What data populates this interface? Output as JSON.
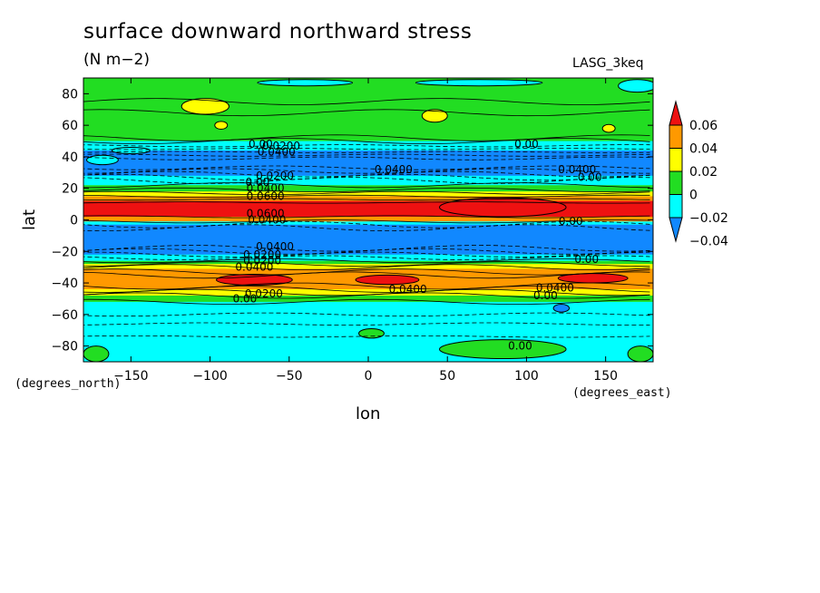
{
  "chart_data": {
    "type": "contour",
    "title": "surface downward northward stress",
    "units": "(N m−2)",
    "model": "LASG_3keq",
    "xlabel": "lon",
    "ylabel": "lat",
    "x_units": "(degrees_east)",
    "y_units": "(degrees_north)",
    "xlim": [
      -180,
      180
    ],
    "ylim": [
      -90,
      90
    ],
    "xticks": [
      -150,
      -100,
      -50,
      0,
      50,
      100,
      150
    ],
    "yticks": [
      -80,
      -60,
      -40,
      -20,
      0,
      20,
      40,
      60,
      80
    ],
    "x_tick_labels": [
      "−150",
      "−100",
      "−50",
      "0",
      "50",
      "100",
      "150"
    ],
    "y_tick_labels": [
      "−80",
      "−60",
      "−40",
      "−20",
      "0",
      "20",
      "40",
      "60",
      "80"
    ],
    "colorbar": {
      "levels": [
        "0.06",
        "0.04",
        "0.02",
        "0",
        "−0.02",
        "−0.04"
      ],
      "colors": [
        "#ee1111",
        "#ff9900",
        "#ffff00",
        "#22dd22",
        "#00ffff",
        "#1188ff"
      ]
    },
    "bands": [
      {
        "lat": [
          72,
          90
        ],
        "color": "#22dd22"
      },
      {
        "lat": [
          50,
          72
        ],
        "color": "#22dd22"
      },
      {
        "lat": [
          44,
          50
        ],
        "color": "#00ffff"
      },
      {
        "lat": [
          28,
          44
        ],
        "color": "#1188ff"
      },
      {
        "lat": [
          22,
          28
        ],
        "color": "#00ffff"
      },
      {
        "lat": [
          18,
          22
        ],
        "color": "#22dd22"
      },
      {
        "lat": [
          15,
          18
        ],
        "color": "#ffff00"
      },
      {
        "lat": [
          12,
          15
        ],
        "color": "#ff9900"
      },
      {
        "lat": [
          2,
          12
        ],
        "color": "#ee1111"
      },
      {
        "lat": [
          -1,
          2
        ],
        "color": "#ff9900"
      },
      {
        "lat": [
          -3,
          -1
        ],
        "color": "#00ffff"
      },
      {
        "lat": [
          -22,
          -3
        ],
        "color": "#1188ff"
      },
      {
        "lat": [
          -26,
          -22
        ],
        "color": "#00ffff"
      },
      {
        "lat": [
          -28,
          -26
        ],
        "color": "#22dd22"
      },
      {
        "lat": [
          -31,
          -28
        ],
        "color": "#ffff00"
      },
      {
        "lat": [
          -44,
          -31
        ],
        "color": "#ff9900"
      },
      {
        "lat": [
          -48,
          -44
        ],
        "color": "#ffff00"
      },
      {
        "lat": [
          -52,
          -48
        ],
        "color": "#22dd22"
      },
      {
        "lat": [
          -90,
          -52
        ],
        "color": "#00ffff"
      }
    ],
    "patches": [
      {
        "lon": -168,
        "lat": 38,
        "rlon": 10,
        "rlat": 3,
        "color": "#00ffff"
      },
      {
        "lon": -150,
        "lat": 44,
        "rlon": 12,
        "rlat": 2,
        "color": "#00ffff"
      },
      {
        "lon": 85,
        "lat": 8,
        "rlon": 40,
        "rlat": 6,
        "color": "#ee1111"
      },
      {
        "lon": -72,
        "lat": -38,
        "rlon": 24,
        "rlat": 3.5,
        "color": "#ee1111"
      },
      {
        "lon": 12,
        "lat": -38,
        "rlon": 20,
        "rlat": 3,
        "color": "#ee1111"
      },
      {
        "lon": 142,
        "lat": -37,
        "rlon": 22,
        "rlat": 3,
        "color": "#ee1111"
      },
      {
        "lon": -103,
        "lat": 72,
        "rlon": 15,
        "rlat": 5,
        "color": "#ffff00"
      },
      {
        "lon": 42,
        "lat": 66,
        "rlon": 8,
        "rlat": 4,
        "color": "#ffff00"
      },
      {
        "lon": -93,
        "lat": 60,
        "rlon": 4,
        "rlat": 2.5,
        "color": "#ffff00"
      },
      {
        "lon": 152,
        "lat": 58,
        "rlon": 4,
        "rlat": 2.5,
        "color": "#ffff00"
      },
      {
        "lon": -40,
        "lat": 87,
        "rlon": 30,
        "rlat": 2,
        "color": "#00ffff"
      },
      {
        "lon": 70,
        "lat": 87,
        "rlon": 40,
        "rlat": 2,
        "color": "#00ffff"
      },
      {
        "lon": 170,
        "lat": 85,
        "rlon": 12,
        "rlat": 4,
        "color": "#00ffff"
      },
      {
        "lon": 2,
        "lat": -72,
        "rlon": 8,
        "rlat": 3,
        "color": "#22dd22"
      },
      {
        "lon": 85,
        "lat": -82,
        "rlon": 40,
        "rlat": 6,
        "color": "#22dd22"
      },
      {
        "lon": -172,
        "lat": -85,
        "rlon": 8,
        "rlat": 5,
        "color": "#22dd22"
      },
      {
        "lon": 172,
        "lat": -85,
        "rlon": 8,
        "rlat": 5,
        "color": "#22dd22"
      },
      {
        "lon": 122,
        "lat": -56,
        "rlon": 5,
        "rlat": 2.5,
        "color": "#1188ff"
      }
    ],
    "solid_contours": [
      75,
      68,
      52,
      50,
      22,
      19,
      17,
      15,
      13,
      11,
      2,
      -1,
      -26,
      -28,
      -30,
      -33,
      -35,
      -42,
      -44,
      -46,
      -48,
      -52
    ],
    "dashed_contours": [
      47,
      45,
      43,
      41,
      39,
      33,
      31,
      29,
      27,
      25,
      -3,
      -5,
      -18,
      -20,
      -22,
      -24,
      -60,
      -66,
      -74
    ],
    "contour_labels": [
      {
        "lon": -68,
        "lat": 48,
        "text": "0.00"
      },
      {
        "lon": -55,
        "lat": 47,
        "text": "0.0200"
      },
      {
        "lon": -58,
        "lat": 43,
        "text": "0.0400"
      },
      {
        "lon": 100,
        "lat": 48,
        "text": "0.00"
      },
      {
        "lon": 16,
        "lat": 32,
        "text": "0.0400"
      },
      {
        "lon": 132,
        "lat": 32,
        "text": "0.0400"
      },
      {
        "lon": 140,
        "lat": 27,
        "text": "0.00"
      },
      {
        "lon": -59,
        "lat": 28,
        "text": "0.0200"
      },
      {
        "lon": -70,
        "lat": 24,
        "text": "0.00"
      },
      {
        "lon": -65,
        "lat": 20,
        "text": "0.0400"
      },
      {
        "lon": -65,
        "lat": 15,
        "text": "0.0600"
      },
      {
        "lon": -65,
        "lat": 4,
        "text": "0.0600"
      },
      {
        "lon": -64,
        "lat": 0,
        "text": "0.0400"
      },
      {
        "lon": 128,
        "lat": -1,
        "text": "0.00"
      },
      {
        "lon": -59,
        "lat": -17,
        "text": "0.0400"
      },
      {
        "lon": -67,
        "lat": -22,
        "text": "0.0200"
      },
      {
        "lon": -67,
        "lat": -26,
        "text": "0.0200"
      },
      {
        "lon": -72,
        "lat": -30,
        "text": "0.0400"
      },
      {
        "lon": 138,
        "lat": -25,
        "text": "0.00"
      },
      {
        "lon": 25,
        "lat": -44,
        "text": "0.0400"
      },
      {
        "lon": 118,
        "lat": -43,
        "text": "0.0400"
      },
      {
        "lon": 112,
        "lat": -48,
        "text": "0.00"
      },
      {
        "lon": -66,
        "lat": -47,
        "text": "0.0200"
      },
      {
        "lon": -78,
        "lat": -50,
        "text": "0.00"
      },
      {
        "lon": 96,
        "lat": -80,
        "text": "0.00"
      }
    ]
  }
}
